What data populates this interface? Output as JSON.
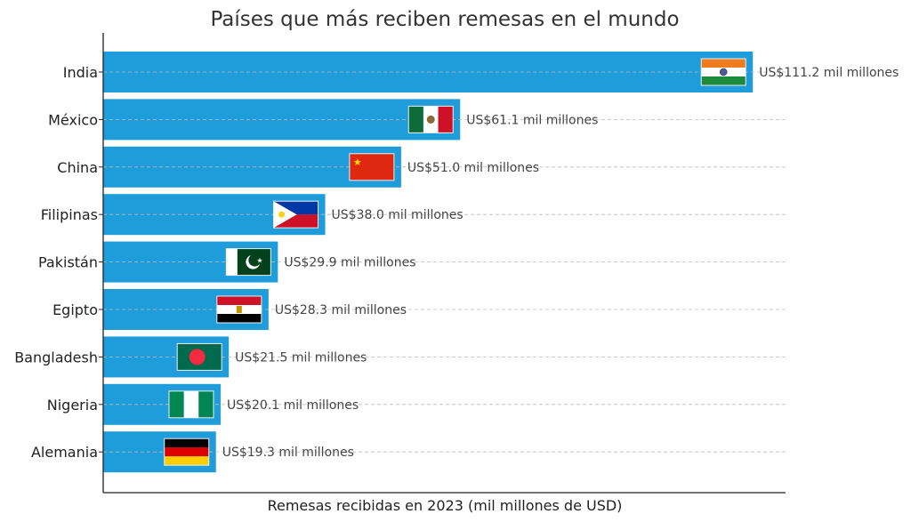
{
  "chart_data": {
    "type": "bar",
    "orientation": "horizontal",
    "title": "Países que más reciben remesas en el mundo",
    "xlabel": "Remesas recibidas en 2023 (mil millones de USD)",
    "ylabel": "",
    "xlim": [
      0,
      116.8
    ],
    "grid": "horizontal dashed",
    "bar_color": "#1f9ddb",
    "categories": [
      "India",
      "México",
      "China",
      "Filipinas",
      "Pakistán",
      "Egipto",
      "Bangladesh",
      "Nigeria",
      "Alemania"
    ],
    "values": [
      111.2,
      61.1,
      51.0,
      38.0,
      29.9,
      28.3,
      21.5,
      20.1,
      19.3
    ],
    "data_labels": [
      "US$111.2 mil millones",
      "US$61.1 mil millones",
      "US$51.0 mil millones",
      "US$38.0 mil millones",
      "US$29.9 mil millones",
      "US$28.3 mil millones",
      "US$21.5 mil millones",
      "US$20.1 mil millones",
      "US$19.3 mil millones"
    ],
    "flags": [
      "india-flag",
      "mexico-flag",
      "china-flag",
      "philippines-flag",
      "pakistan-flag",
      "egypt-flag",
      "bangladesh-flag",
      "nigeria-flag",
      "germany-flag"
    ]
  }
}
